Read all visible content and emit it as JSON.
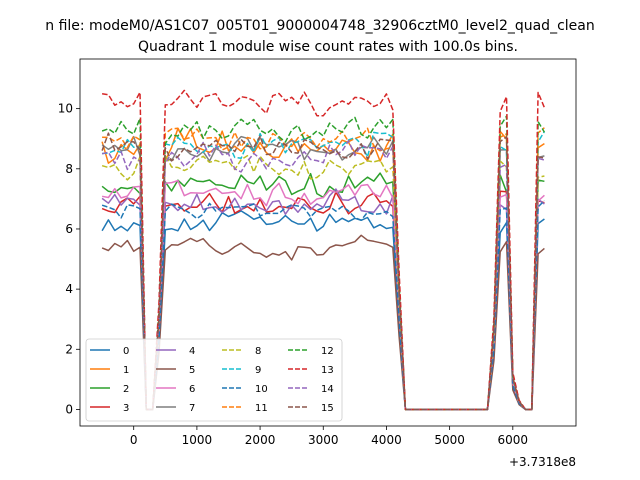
{
  "figure": {
    "suptitle": "n file: modeM0/AS1C07_005T01_9000004748_32906cztM0_level2_quad_clean",
    "offset_text": "+3.7318e8"
  },
  "chart_data": {
    "type": "line",
    "title": "Quadrant 1 module wise count rates with 100.0s bins.",
    "xlabel": "",
    "ylabel": "",
    "xlim": [
      -850,
      7000
    ],
    "ylim": [
      -0.55,
      11.65
    ],
    "xticks": [
      0,
      1000,
      2000,
      3000,
      4000,
      5000,
      6000
    ],
    "yticks": [
      0,
      2,
      4,
      6,
      8,
      10
    ],
    "x_offset": 373180000,
    "grid": false,
    "legend": {
      "position": "lower-left",
      "columns": 4
    },
    "x_range": {
      "start": -500,
      "step": 100,
      "count": 71
    },
    "segments": [
      {
        "from": -500,
        "to": 100,
        "type": "high"
      },
      {
        "from": 200,
        "to": 300,
        "type": "zero"
      },
      {
        "from": 400,
        "to": 400,
        "type": "ramp",
        "frac": 0.35
      },
      {
        "from": 500,
        "to": 4100,
        "type": "high"
      },
      {
        "from": 4200,
        "to": 4200,
        "type": "ramp",
        "frac": 0.45
      },
      {
        "from": 4300,
        "to": 5600,
        "type": "zero"
      },
      {
        "from": 5700,
        "to": 5700,
        "type": "ramp",
        "frac": 0.3
      },
      {
        "from": 5800,
        "to": 5900,
        "type": "high"
      },
      {
        "from": 6000,
        "to": 6000,
        "type": "ramp",
        "frac": 0.12
      },
      {
        "from": 6100,
        "to": 6100,
        "type": "ramp",
        "frac": 0.03
      },
      {
        "from": 6200,
        "to": 6300,
        "type": "zero"
      },
      {
        "from": 6400,
        "to": 6500,
        "type": "high"
      }
    ],
    "series": [
      {
        "name": "0",
        "color": "#1f77b4",
        "dash": "solid",
        "base": 6.2,
        "noise": 0.35
      },
      {
        "name": "1",
        "color": "#ff7f0e",
        "dash": "solid",
        "base": 8.8,
        "noise": 0.45
      },
      {
        "name": "2",
        "color": "#2ca02c",
        "dash": "solid",
        "base": 7.5,
        "noise": 0.4
      },
      {
        "name": "3",
        "color": "#d62728",
        "dash": "solid",
        "base": 6.9,
        "noise": 0.35
      },
      {
        "name": "4",
        "color": "#9467bd",
        "dash": "solid",
        "base": 6.9,
        "noise": 0.35
      },
      {
        "name": "5",
        "color": "#8c564b",
        "dash": "solid",
        "base": 5.4,
        "noise": 0.3
      },
      {
        "name": "6",
        "color": "#e377c2",
        "dash": "solid",
        "base": 7.3,
        "noise": 0.4
      },
      {
        "name": "7",
        "color": "#7f7f7f",
        "dash": "solid",
        "base": 8.6,
        "noise": 0.45
      },
      {
        "name": "8",
        "color": "#bcbd22",
        "dash": "dashed",
        "base": 8.1,
        "noise": 0.4
      },
      {
        "name": "9",
        "color": "#17becf",
        "dash": "dashed",
        "base": 8.7,
        "noise": 0.45
      },
      {
        "name": "10",
        "color": "#1f77b4",
        "dash": "dashed",
        "base": 6.6,
        "noise": 0.35
      },
      {
        "name": "11",
        "color": "#ff7f0e",
        "dash": "dashed",
        "base": 9.0,
        "noise": 0.45
      },
      {
        "name": "12",
        "color": "#2ca02c",
        "dash": "dashed",
        "base": 9.4,
        "noise": 0.45
      },
      {
        "name": "13",
        "color": "#d62728",
        "dash": "dashed",
        "base": 10.2,
        "noise": 0.45
      },
      {
        "name": "14",
        "color": "#9467bd",
        "dash": "dashed",
        "base": 8.4,
        "noise": 0.45
      },
      {
        "name": "15",
        "color": "#8c564b",
        "dash": "dashed",
        "base": 8.7,
        "noise": 0.45
      }
    ]
  }
}
